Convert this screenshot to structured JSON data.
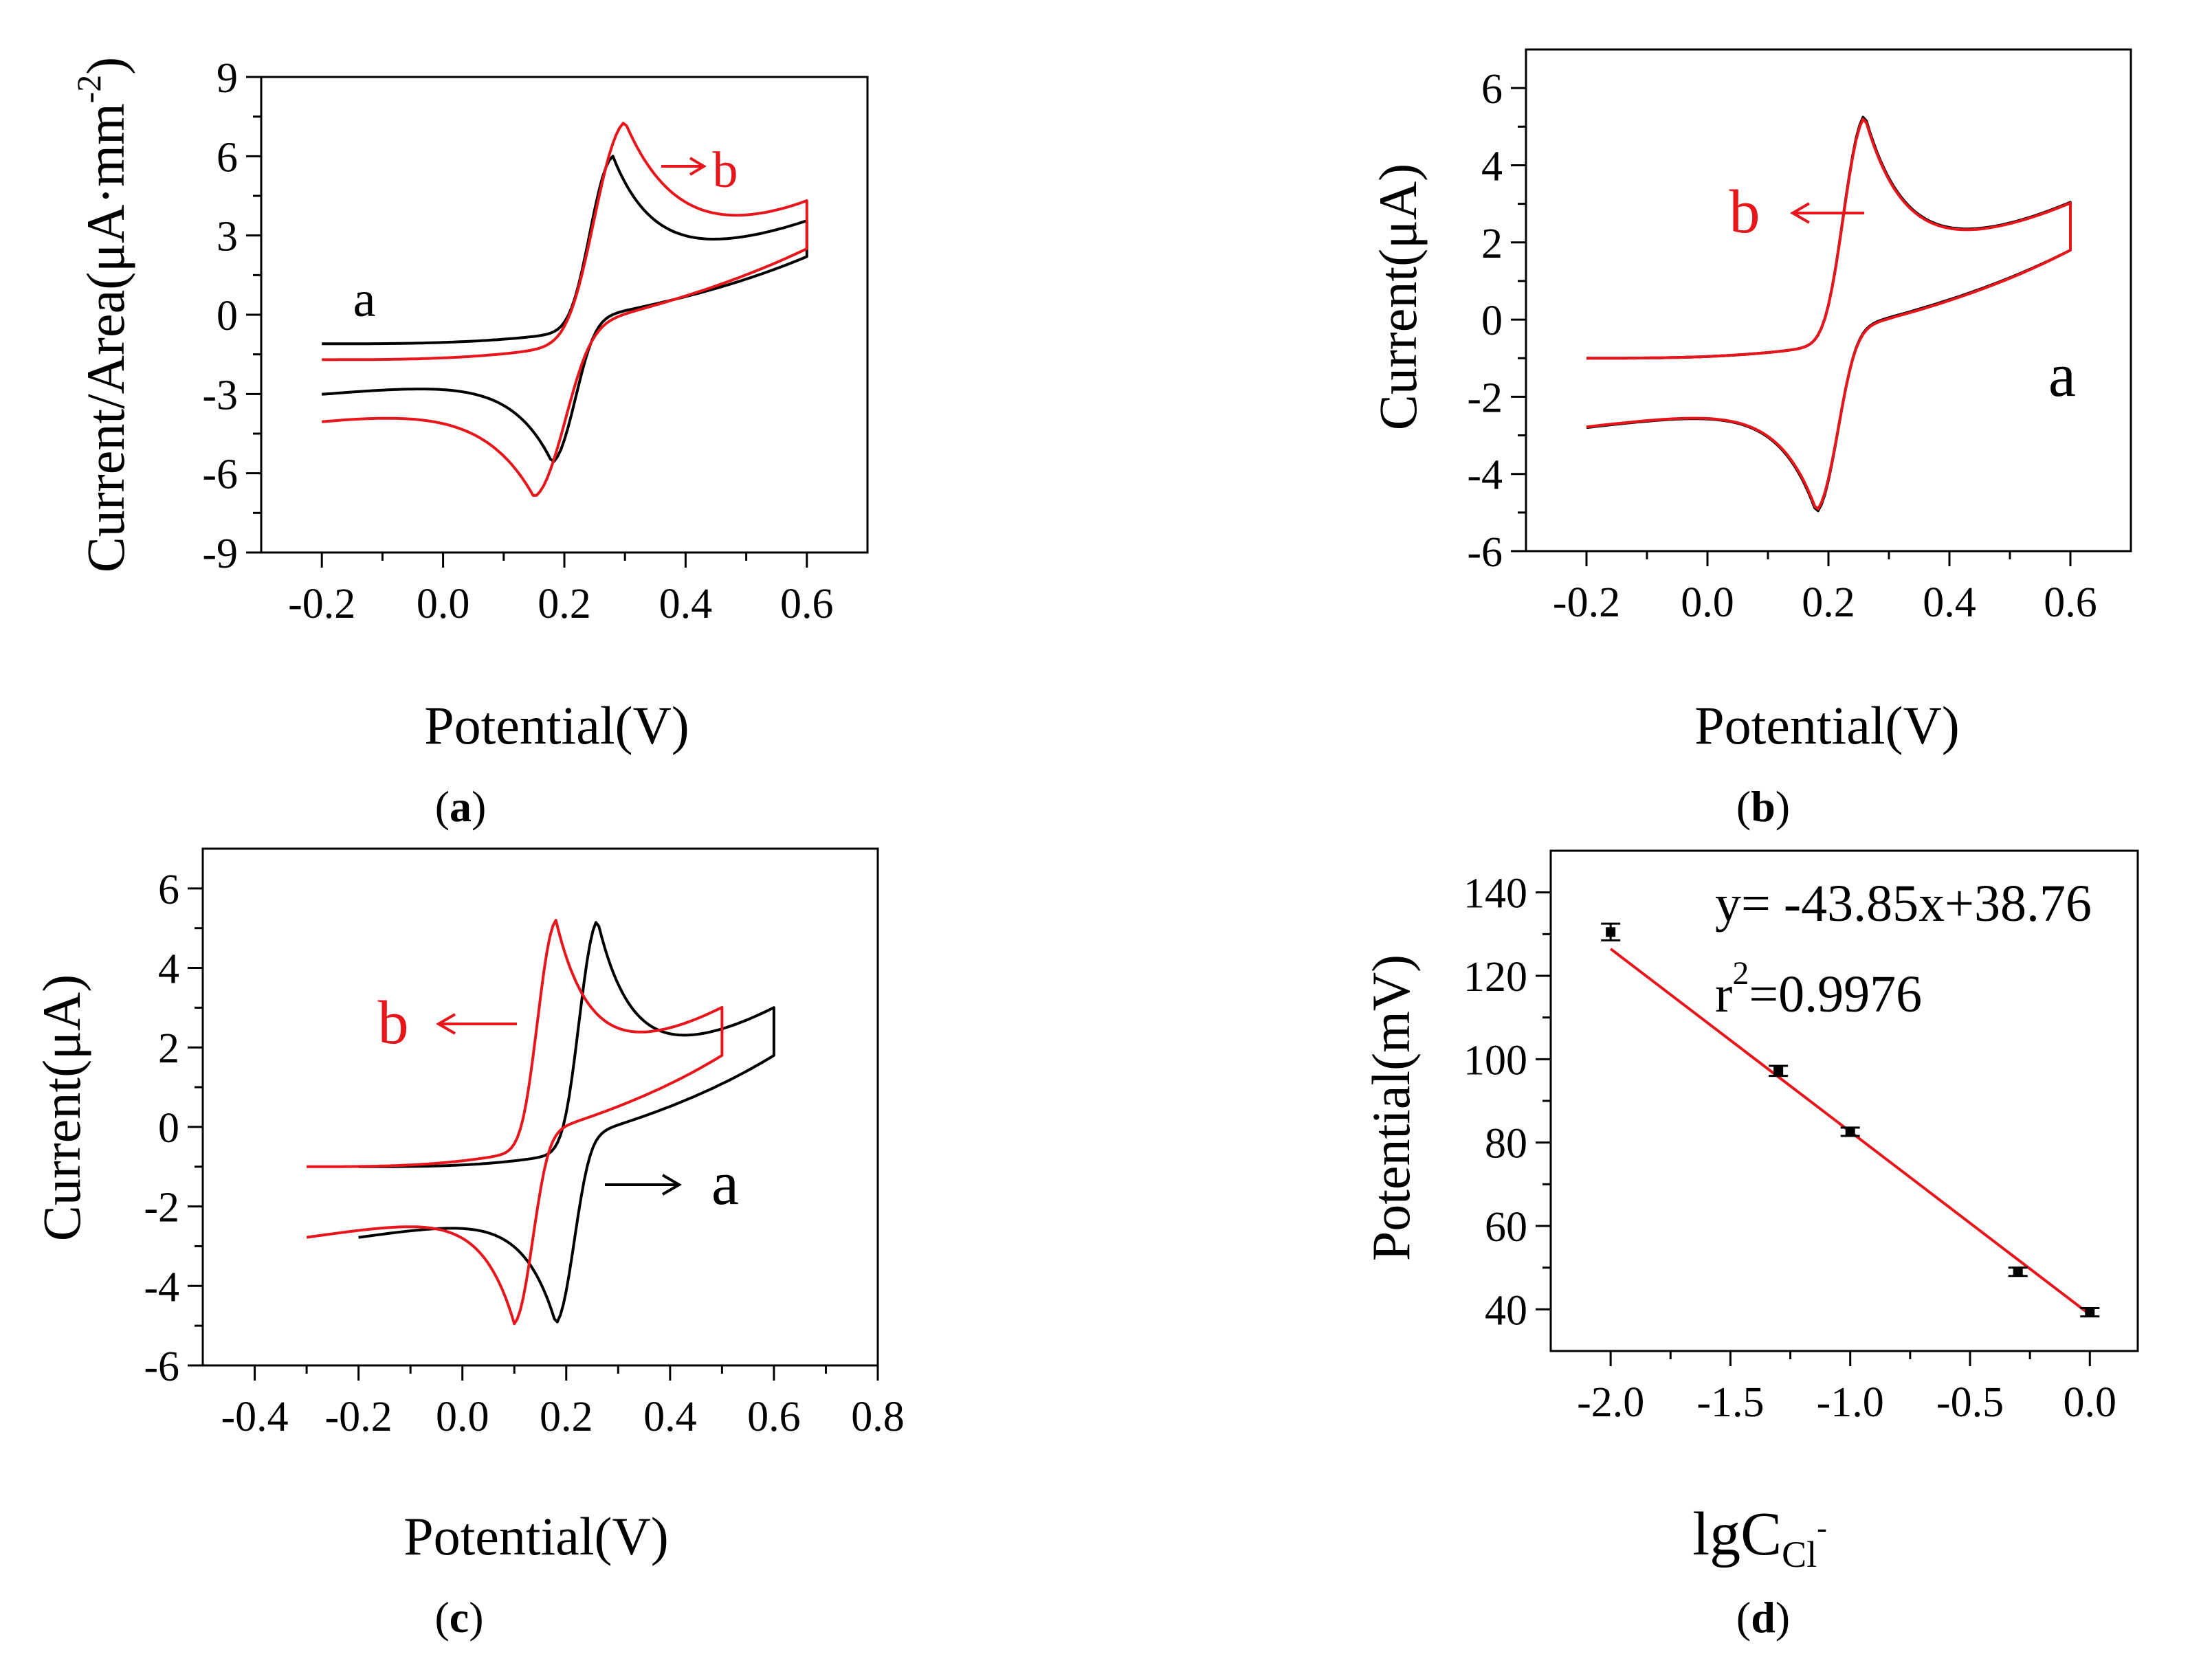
{
  "chart_data": [
    {
      "id": "a",
      "type": "line",
      "subtype": "cyclic-voltammogram",
      "caption": "a",
      "xlabel": "Potential(V)",
      "ylabel": "Current/Area(μA·mm",
      "ylabel_sup": "-2",
      "ylabel_end": ")",
      "xlim": [
        -0.3,
        0.7
      ],
      "ylim": [
        -9,
        9
      ],
      "xticks": [
        -0.2,
        0.0,
        0.2,
        0.4,
        0.6
      ],
      "xtick_labels": [
        "-0.2",
        "0.0",
        "0.2",
        "0.4",
        "0.6"
      ],
      "yticks": [
        -9,
        -6,
        -3,
        0,
        3,
        6,
        9
      ],
      "ytick_labels": [
        "-9",
        "-6",
        "-3",
        "0",
        "3",
        "6",
        "9"
      ],
      "series": [
        {
          "name": "a",
          "color": "#000000",
          "e_start": -0.2,
          "e_end": 0.6,
          "i_start": -1.6,
          "i_end": 2.2,
          "i_cathodic_base": -1.1,
          "i_anodic_base": 0.9,
          "anodic_peak": [
            0.28,
            6.0
          ],
          "cathodic_peak": [
            0.18,
            -5.6
          ],
          "width": 0.045
        },
        {
          "name": "b",
          "color": "#e8151b",
          "e_start": -0.2,
          "e_end": 0.6,
          "i_start": -2.4,
          "i_end": 2.5,
          "i_cathodic_base": -1.7,
          "i_anodic_base": 1.2,
          "anodic_peak": [
            0.3,
            7.3
          ],
          "cathodic_peak": [
            0.15,
            -6.9
          ],
          "width": 0.06
        }
      ],
      "annotations": [
        {
          "text": "a",
          "color": "#000000",
          "arrow": false
        },
        {
          "text": "b",
          "color": "#e8151b",
          "arrow": true
        }
      ]
    },
    {
      "id": "b",
      "type": "line",
      "subtype": "cyclic-voltammogram",
      "caption": "b",
      "xlabel": "Potential(V)",
      "ylabel": "Current(μA)",
      "xlim": [
        -0.3,
        0.7
      ],
      "ylim": [
        -6,
        7
      ],
      "xticks": [
        -0.2,
        0.0,
        0.2,
        0.4,
        0.6
      ],
      "xtick_labels": [
        "-0.2",
        "0.0",
        "0.2",
        "0.4",
        "0.6"
      ],
      "yticks": [
        -6,
        -4,
        -2,
        0,
        2,
        4,
        6
      ],
      "ytick_labels": [
        "-6",
        "-4",
        "-2",
        "0",
        "2",
        "4",
        "6"
      ],
      "series": [
        {
          "name": "a",
          "color": "#000000",
          "e_start": -0.2,
          "e_end": 0.6,
          "i_start": -1.6,
          "i_end": 1.8,
          "i_cathodic_base": -1.0,
          "i_anodic_base": 0.8,
          "anodic_peak": [
            0.26,
            5.3
          ],
          "cathodic_peak": [
            0.18,
            -5.0
          ],
          "width": 0.042
        },
        {
          "name": "b",
          "color": "#e8151b",
          "e_start": -0.2,
          "e_end": 0.6,
          "i_start": -1.6,
          "i_end": 1.8,
          "i_cathodic_base": -1.0,
          "i_anodic_base": 0.75,
          "anodic_peak": [
            0.26,
            5.25
          ],
          "cathodic_peak": [
            0.18,
            -4.95
          ],
          "width": 0.042
        }
      ],
      "annotations": [
        {
          "text": "b",
          "color": "#e8151b",
          "arrow": true
        },
        {
          "text": "a",
          "color": "#000000",
          "arrow": false
        }
      ]
    },
    {
      "id": "c",
      "type": "line",
      "subtype": "cyclic-voltammogram",
      "caption": "c",
      "xlabel": "Potential(V)",
      "ylabel": "Current(μA)",
      "xlim": [
        -0.5,
        0.8
      ],
      "ylim": [
        -6,
        7
      ],
      "xticks": [
        -0.4,
        -0.2,
        0.0,
        0.2,
        0.4,
        0.6,
        0.8
      ],
      "xtick_labels": [
        "-0.4",
        "-0.2",
        "0.0",
        "0.2",
        "0.4",
        "0.6",
        "0.8"
      ],
      "yticks": [
        -6,
        -4,
        -2,
        0,
        2,
        4,
        6
      ],
      "ytick_labels": [
        "-6",
        "-4",
        "-2",
        "0",
        "2",
        "4",
        "6"
      ],
      "series": [
        {
          "name": "a",
          "color": "#000000",
          "e_start": -0.2,
          "e_end": 0.6,
          "i_start": -1.6,
          "i_end": 1.8,
          "i_cathodic_base": -1.0,
          "i_anodic_base": 0.8,
          "anodic_peak": [
            0.26,
            5.2
          ],
          "cathodic_peak": [
            0.18,
            -4.95
          ],
          "width": 0.042
        },
        {
          "name": "b",
          "color": "#e8151b",
          "e_start": -0.3,
          "e_end": 0.5,
          "i_start": -1.6,
          "i_end": 1.8,
          "i_cathodic_base": -1.0,
          "i_anodic_base": 0.8,
          "anodic_peak": [
            0.18,
            5.2
          ],
          "cathodic_peak": [
            0.1,
            -4.95
          ],
          "width": 0.042
        }
      ],
      "annotations": [
        {
          "text": "b",
          "color": "#e8151b",
          "arrow": true
        },
        {
          "text": "a",
          "color": "#000000",
          "arrow": true
        }
      ]
    },
    {
      "id": "d",
      "type": "scatter",
      "caption": "d",
      "xlabel": "lgC",
      "xlabel_sub": "Cl",
      "xlabel_sup": "-",
      "ylabel": "Potential(mV)",
      "xlim": [
        -2.25,
        0.2
      ],
      "ylim": [
        30,
        150
      ],
      "xticks": [
        -2.0,
        -1.5,
        -1.0,
        -0.5,
        0.0
      ],
      "xtick_labels": [
        "-2.0",
        "-1.5",
        "-1.0",
        "-0.5",
        "0.0"
      ],
      "yticks": [
        40,
        60,
        80,
        100,
        120,
        140
      ],
      "ytick_labels": [
        "40",
        "60",
        "80",
        "100",
        "120",
        "140"
      ],
      "points": [
        {
          "x": -2.0,
          "y": 130.5,
          "err": 2.0
        },
        {
          "x": -1.3,
          "y": 97.2,
          "err": 1.2
        },
        {
          "x": -1.0,
          "y": 82.6,
          "err": 1.0
        },
        {
          "x": -0.3,
          "y": 49.0,
          "err": 1.0
        },
        {
          "x": 0.0,
          "y": 39.3,
          "err": 1.0
        }
      ],
      "fit": {
        "slope": -43.85,
        "intercept": 38.76,
        "x_from": -2.0,
        "x_to": 0.0,
        "color": "#e8151b"
      },
      "equation": "y= -43.85x+38.76",
      "r2_prefix": "r",
      "r2_sup": "2",
      "r2_value": "=0.9976"
    }
  ]
}
